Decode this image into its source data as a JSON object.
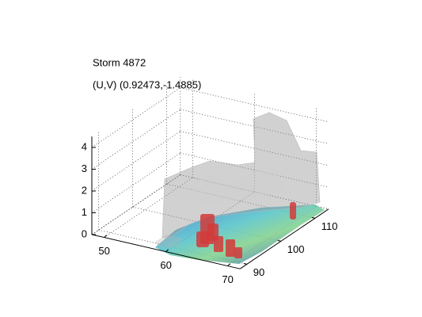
{
  "chart_data": {
    "type": "surface3d",
    "title": "Storm 4872",
    "subtitle": "(U,V) (0.92473,-1.4885)",
    "xlim": [
      48,
      72
    ],
    "xticks": [
      50,
      60,
      70
    ],
    "ylim": [
      88,
      114
    ],
    "yticks": [
      90,
      100,
      110
    ],
    "zlim": [
      0,
      4.5
    ],
    "zticks": [
      0,
      1,
      2,
      3,
      4
    ],
    "grid": true
  }
}
